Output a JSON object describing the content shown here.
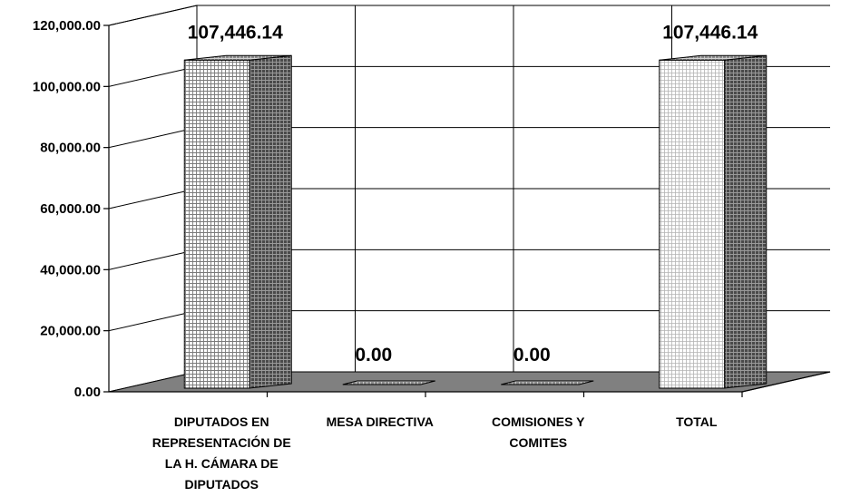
{
  "chart_data": {
    "type": "bar",
    "style": "3d",
    "categories": [
      "DIPUTADOS EN REPRESENTACIÓN DE LA H. CÁMARA DE DIPUTADOS",
      "MESA DIRECTIVA",
      "COMISIONES Y COMITES",
      "TOTAL"
    ],
    "category_lines": [
      [
        "DIPUTADOS EN",
        "REPRESENTACIÓN DE",
        "LA H. CÁMARA DE",
        "DIPUTADOS"
      ],
      [
        "MESA DIRECTIVA"
      ],
      [
        "COMISIONES Y",
        "COMITES"
      ],
      [
        "TOTAL"
      ]
    ],
    "values": [
      107446.14,
      0.0,
      0.0,
      107446.14
    ],
    "data_labels": [
      "107,446.14",
      "0.00",
      "0.00",
      "107,446.14"
    ],
    "ylim": [
      0,
      120000
    ],
    "yticks": [
      0,
      20000,
      40000,
      60000,
      80000,
      100000,
      120000
    ],
    "ytick_labels": [
      "0.00",
      "20,000.00",
      "40,000.00",
      "60,000.00",
      "80,000.00",
      "100,000.00",
      "120,000.00"
    ],
    "grid": true,
    "legend": "none"
  }
}
